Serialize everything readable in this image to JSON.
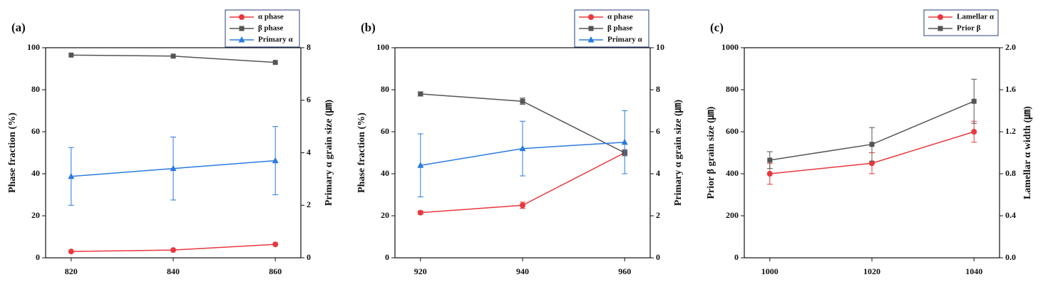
{
  "chart_data": [
    {
      "type": "line",
      "title": "(a)",
      "y_label": "Phase fraction (%)",
      "y2_label": "Primary α grain size (㎛)",
      "x": [
        820,
        840,
        860
      ],
      "xlim": [
        815,
        865
      ],
      "xticks": [
        820,
        840,
        860
      ],
      "ylim": [
        0,
        100
      ],
      "yticks": [
        0,
        20,
        40,
        60,
        80,
        100
      ],
      "y2lim": [
        0,
        8
      ],
      "y2ticks": [
        0,
        2,
        4,
        6,
        8
      ],
      "series": [
        {
          "name": "α phase",
          "color": "#e8383d",
          "marker": "circle",
          "values": [
            3,
            3.7,
            6.4
          ]
        },
        {
          "name": "β phase",
          "color": "#555555",
          "marker": "square",
          "values": [
            96.5,
            96,
            93
          ]
        },
        {
          "name": "Primary α",
          "color": "#2b7bdc",
          "marker": "triangle",
          "axis": "y2",
          "values": [
            3.1,
            3.4,
            3.7
          ],
          "errors": [
            1.1,
            1.2,
            1.3
          ]
        }
      ]
    },
    {
      "type": "line",
      "title": "(b)",
      "y_label": "Phase fraction (%)",
      "y2_label": "Primary α grain size (㎛)",
      "x": [
        920,
        940,
        960
      ],
      "xlim": [
        915,
        965
      ],
      "xticks": [
        920,
        940,
        960
      ],
      "ylim": [
        0,
        100
      ],
      "yticks": [
        0,
        20,
        40,
        60,
        80,
        100
      ],
      "y2lim": [
        0,
        10
      ],
      "y2ticks": [
        0,
        2,
        4,
        6,
        8,
        10
      ],
      "series": [
        {
          "name": "α phase",
          "color": "#e8383d",
          "marker": "circle",
          "values": [
            21.5,
            25,
            50
          ],
          "errors": [
            0.8,
            1.5,
            1
          ]
        },
        {
          "name": "β phase",
          "color": "#555555",
          "marker": "square",
          "values": [
            78,
            74.5,
            50
          ],
          "errors": [
            1,
            1.5,
            1.5
          ]
        },
        {
          "name": "Primary α",
          "color": "#2b7bdc",
          "marker": "triangle",
          "axis": "y2",
          "values": [
            4.4,
            5.2,
            5.5
          ],
          "errors": [
            1.5,
            1.3,
            1.5
          ]
        }
      ]
    },
    {
      "type": "line",
      "title": "(c)",
      "y_label": "Prior β grain size (㎛)",
      "y2_label": "Lamellar α width (㎛)",
      "x": [
        1000,
        1020,
        1040
      ],
      "xlim": [
        995,
        1045
      ],
      "xticks": [
        1000,
        1020,
        1040
      ],
      "ylim": [
        0,
        1000
      ],
      "yticks": [
        0,
        200,
        400,
        600,
        800,
        1000
      ],
      "y2lim": [
        0,
        2
      ],
      "y2ticks": [
        {
          "value": 0,
          "label": "0.0"
        },
        0.4,
        0.8,
        1.2,
        1.6,
        {
          "value": 2,
          "label": "2.0"
        }
      ],
      "series": [
        {
          "name": "Lamellar α",
          "color": "#e8383d",
          "marker": "circle",
          "axis": "y2",
          "values": [
            0.8,
            0.9,
            1.2
          ],
          "errors": [
            0.1,
            0.1,
            0.1
          ]
        },
        {
          "name": "Prior β",
          "color": "#555555",
          "marker": "square",
          "values": [
            465,
            540,
            745
          ],
          "errors": [
            40,
            80,
            105
          ]
        }
      ]
    }
  ]
}
